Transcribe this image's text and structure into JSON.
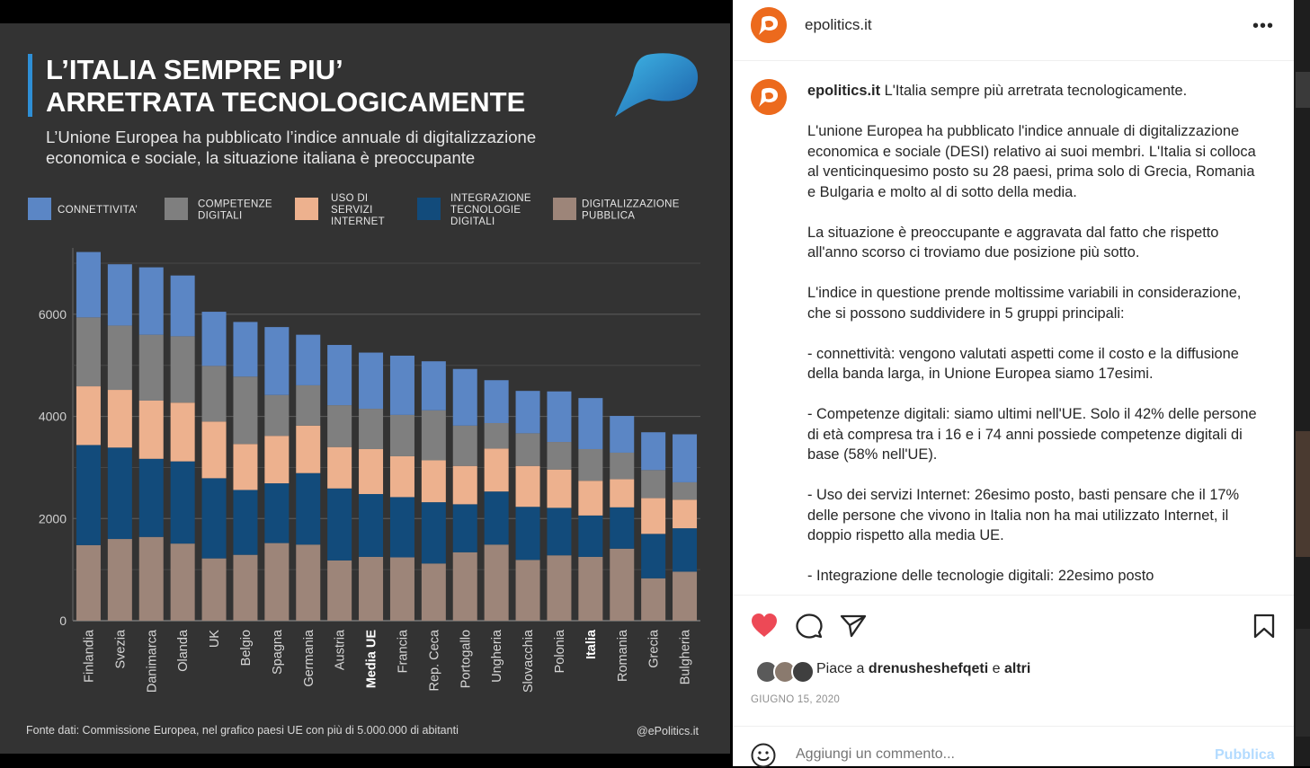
{
  "infographic": {
    "title_line1": "L’ITALIA SEMPRE PIU’",
    "title_line2": "ARRETRATA TECNOLOGICAMENTE",
    "subtitle_line1": "L’Unione Europea ha pubblicato l’indice annuale di digitalizzazione",
    "subtitle_line2": "economica e sociale, la situazione italiana è preoccupante",
    "source": "Fonte dati: Commissione Europea, nel grafico paesi UE con più di 5.000.000 di abitanti",
    "handle": "@ePolitics.it",
    "highlighted_categories": [
      "Media UE",
      "Italia"
    ]
  },
  "chart_data": {
    "type": "bar",
    "stacked": true,
    "categories": [
      "Finlandia",
      "Svezia",
      "Danimarca",
      "Olanda",
      "UK",
      "Belgio",
      "Spagna",
      "Germania",
      "Austria",
      "Media UE",
      "Francia",
      "Rep. Ceca",
      "Portogallo",
      "Ungheria",
      "Slovacchia",
      "Polonia",
      "Italia",
      "Romania",
      "Grecia",
      "Bulgheria"
    ],
    "legend": [
      {
        "name": "DIGITALIZZAZIONE\nPUBBLICA",
        "color": "#9d8579"
      },
      {
        "name": "INTEGRAZIONE\nTECNOLOGIE\nDIGITALI",
        "color": "#124b7b"
      },
      {
        "name": "USO DI\nSERVIZI\nINTERNET",
        "color": "#edb18e"
      },
      {
        "name": "COMPETENZE\nDIGITALI",
        "color": "#7f7f7f"
      },
      {
        "name": "CONNETTIVITA’",
        "color": "#5b86c5"
      }
    ],
    "legend_order": [
      "CONNETTIVITA’",
      "COMPETENZE\nDIGITALI",
      "USO DI\nSERVIZI\nINTERNET",
      "INTEGRAZIONE\nTECNOLOGIE\nDIGITALI",
      "DIGITALIZZAZIONE\nPUBBLICA"
    ],
    "series": [
      {
        "name": "DIGITALIZZAZIONE\nPUBBLICA",
        "color": "#9d8579",
        "values": [
          1480,
          1600,
          1640,
          1510,
          1220,
          1290,
          1520,
          1490,
          1180,
          1250,
          1240,
          1120,
          1340,
          1490,
          1190,
          1280,
          1250,
          1410,
          830,
          960
        ]
      },
      {
        "name": "INTEGRAZIONE\nTECNOLOGIE\nDIGITALI",
        "color": "#124b7b",
        "values": [
          1960,
          1790,
          1530,
          1610,
          1570,
          1270,
          1170,
          1400,
          1410,
          1230,
          1180,
          1200,
          940,
          1040,
          1040,
          930,
          810,
          810,
          870,
          850
        ]
      },
      {
        "name": "USO DI\nSERVIZI\nINTERNET",
        "color": "#edb18e",
        "values": [
          1150,
          1130,
          1140,
          1150,
          1110,
          900,
          930,
          930,
          810,
          880,
          800,
          820,
          750,
          840,
          800,
          750,
          680,
          550,
          700,
          560
        ]
      },
      {
        "name": "COMPETENZE\nDIGITALI",
        "color": "#7f7f7f",
        "values": [
          1350,
          1260,
          1290,
          1300,
          1090,
          1320,
          800,
          790,
          820,
          790,
          810,
          980,
          790,
          500,
          640,
          540,
          620,
          520,
          550,
          340
        ]
      },
      {
        "name": "CONNETTIVITA’",
        "color": "#5b86c5",
        "values": [
          1280,
          1200,
          1320,
          1190,
          1060,
          1070,
          1330,
          990,
          1180,
          1100,
          1160,
          960,
          1110,
          840,
          830,
          990,
          1000,
          720,
          740,
          940
        ]
      }
    ],
    "y_ticks": [
      0,
      2000,
      4000,
      6000
    ],
    "ylim": [
      0,
      7300
    ],
    "grid": true,
    "legend_position": "top"
  },
  "post": {
    "username": "epolitics.it",
    "more_icon": "more-horizontal-icon",
    "caption_first": "L'Italia sempre più arretrata tecnologicamente.",
    "caption_paragraphs": [
      "L'unione Europea ha pubblicato l'indice annuale di digitalizzazione economica e sociale (DESI) relativo ai suoi membri. L'Italia si colloca al venticinquesimo posto su 28 paesi, prima solo di Grecia, Romania e Bulgaria e molto al di sotto della media.",
      "La situazione è preoccupante e aggravata dal fatto che rispetto all'anno scorso ci troviamo due posizione più sotto.",
      "L'indice in questione prende moltissime variabili in considerazione, che si possono suddividere in 5 gruppi principali:",
      "- connettività: vengono valutati aspetti come il costo e la diffusione della banda larga, in Unione Europea siamo 17esimi.",
      "- Competenze digitali: siamo ultimi nell'UE. Solo il 42% delle persone di età compresa tra i 16 e i 74 anni possiede competenze digitali di base (58% nell'UE).",
      "- Uso dei servizi Internet: 26esimo posto, basti pensare che il 17% delle persone che vivono in Italia non ha mai utilizzato Internet, il doppio rispetto alla media UE.",
      "- Integrazione delle tecnologie digitali: 22esimo posto"
    ],
    "likes_prefix": "Piace a ",
    "likes_user": "drenusheshefqeti",
    "likes_conj": " e ",
    "likes_others": "altri",
    "date": "GIUGNO 15, 2020",
    "comment_placeholder": "Aggiungi un commento...",
    "publish_label": "Pubblica",
    "accent_color": "#ed4956",
    "publish_color": "#b3dbff"
  }
}
